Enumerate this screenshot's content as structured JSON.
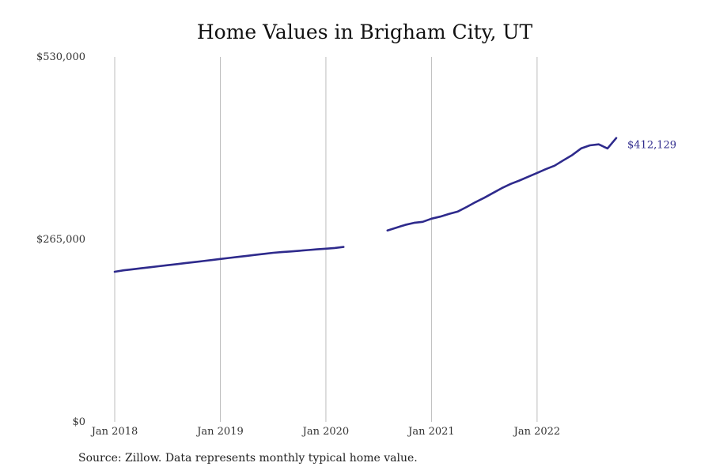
{
  "chart_data": {
    "type": "line",
    "title": "Home Values in Brigham City, UT",
    "xlabel": "",
    "ylabel": "",
    "ylim": [
      0,
      530000
    ],
    "y_ticks": [
      {
        "value": 0,
        "label": "$0"
      },
      {
        "value": 265000,
        "label": "$265,000"
      },
      {
        "value": 530000,
        "label": "$530,000"
      }
    ],
    "x_ticks": [
      {
        "date": "2018-01",
        "label": "Jan 2018"
      },
      {
        "date": "2019-01",
        "label": "Jan 2019"
      },
      {
        "date": "2020-01",
        "label": "Jan 2020"
      },
      {
        "date": "2021-01",
        "label": "Jan 2021"
      },
      {
        "date": "2022-01",
        "label": "Jan 2022"
      }
    ],
    "x_range": [
      "2018-01",
      "2022-10"
    ],
    "grid": "vertical",
    "series_color": "#2e2a8c",
    "end_label": "$412,129",
    "segments": [
      [
        {
          "x": "2018-01",
          "y": 218000
        },
        {
          "x": "2018-02",
          "y": 220000
        },
        {
          "x": "2018-03",
          "y": 221500
        },
        {
          "x": "2018-04",
          "y": 223000
        },
        {
          "x": "2018-05",
          "y": 224500
        },
        {
          "x": "2018-06",
          "y": 226000
        },
        {
          "x": "2018-07",
          "y": 227500
        },
        {
          "x": "2018-08",
          "y": 229000
        },
        {
          "x": "2018-09",
          "y": 230500
        },
        {
          "x": "2018-10",
          "y": 232000
        },
        {
          "x": "2018-11",
          "y": 233500
        },
        {
          "x": "2018-12",
          "y": 235000
        },
        {
          "x": "2019-01",
          "y": 236500
        },
        {
          "x": "2019-02",
          "y": 238000
        },
        {
          "x": "2019-03",
          "y": 239500
        },
        {
          "x": "2019-04",
          "y": 241000
        },
        {
          "x": "2019-05",
          "y": 242500
        },
        {
          "x": "2019-06",
          "y": 244000
        },
        {
          "x": "2019-07",
          "y": 245500
        },
        {
          "x": "2019-08",
          "y": 246500
        },
        {
          "x": "2019-09",
          "y": 247500
        },
        {
          "x": "2019-10",
          "y": 248500
        },
        {
          "x": "2019-11",
          "y": 249500
        },
        {
          "x": "2019-12",
          "y": 250500
        },
        {
          "x": "2020-01",
          "y": 251500
        },
        {
          "x": "2020-02",
          "y": 252500
        },
        {
          "x": "2020-03",
          "y": 254000
        }
      ],
      [
        {
          "x": "2020-08",
          "y": 278000
        },
        {
          "x": "2020-09",
          "y": 282000
        },
        {
          "x": "2020-10",
          "y": 286000
        },
        {
          "x": "2020-11",
          "y": 289000
        },
        {
          "x": "2020-12",
          "y": 290500
        },
        {
          "x": "2021-01",
          "y": 295000
        },
        {
          "x": "2021-02",
          "y": 298000
        },
        {
          "x": "2021-03",
          "y": 302000
        },
        {
          "x": "2021-04",
          "y": 305500
        },
        {
          "x": "2021-05",
          "y": 312000
        },
        {
          "x": "2021-06",
          "y": 319000
        },
        {
          "x": "2021-07",
          "y": 325500
        },
        {
          "x": "2021-08",
          "y": 332500
        },
        {
          "x": "2021-09",
          "y": 339500
        },
        {
          "x": "2021-10",
          "y": 345500
        },
        {
          "x": "2021-11",
          "y": 350500
        },
        {
          "x": "2021-12",
          "y": 356000
        },
        {
          "x": "2022-01",
          "y": 361500
        },
        {
          "x": "2022-02",
          "y": 367000
        },
        {
          "x": "2022-03",
          "y": 372000
        },
        {
          "x": "2022-04",
          "y": 380000
        },
        {
          "x": "2022-05",
          "y": 387500
        },
        {
          "x": "2022-06",
          "y": 397000
        },
        {
          "x": "2022-07",
          "y": 401500
        },
        {
          "x": "2022-08",
          "y": 403000
        },
        {
          "x": "2022-09",
          "y": 397000
        },
        {
          "x": "2022-10",
          "y": 412129
        }
      ]
    ]
  },
  "source": "Source: Zillow. Data represents monthly typical home value."
}
